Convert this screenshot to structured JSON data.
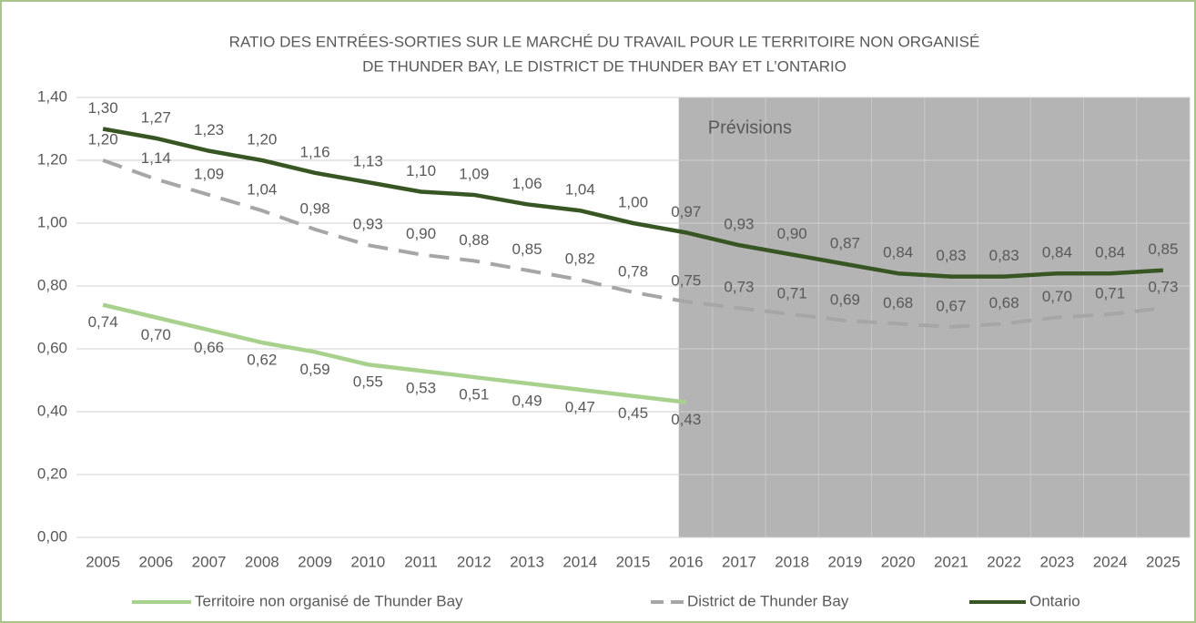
{
  "chart_data": {
    "type": "line",
    "title": [
      "RATIO DES ENTRÉES-SORTIES SUR LE MARCHÉ DU TRAVAIL POUR LE TERRITOIRE NON ORGANISÉ",
      "DE THUNDER BAY, LE DISTRICT DE THUNDER BAY ET L’ONTARIO"
    ],
    "annotation": {
      "text": "Prévisions",
      "x": "2016"
    },
    "categories": [
      "2005",
      "2006",
      "2007",
      "2008",
      "2009",
      "2010",
      "2011",
      "2012",
      "2013",
      "2014",
      "2015",
      "2016",
      "2017",
      "2018",
      "2019",
      "2020",
      "2021",
      "2022",
      "2023",
      "2024",
      "2025"
    ],
    "series": [
      {
        "name": "Territoire non organisé de Thunder Bay",
        "color": "#a9d18e",
        "dash": false,
        "label_side": "below",
        "values": [
          0.74,
          0.7,
          0.66,
          0.62,
          0.59,
          0.55,
          0.53,
          0.51,
          0.49,
          0.47,
          0.45,
          0.43,
          null,
          null,
          null,
          null,
          null,
          null,
          null,
          null,
          null
        ],
        "value_labels": [
          "0,74",
          "0,70",
          "0,66",
          "0,62",
          "0,59",
          "0,55",
          "0,53",
          "0,51",
          "0,49",
          "0,47",
          "0,45",
          "0,43",
          null,
          null,
          null,
          null,
          null,
          null,
          null,
          null,
          null
        ]
      },
      {
        "name": "District de Thunder Bay",
        "color": "#a6a6a6",
        "dash": true,
        "label_side": "above",
        "values": [
          1.2,
          1.14,
          1.09,
          1.04,
          0.98,
          0.93,
          0.9,
          0.88,
          0.85,
          0.82,
          0.78,
          0.75,
          0.73,
          0.71,
          0.69,
          0.68,
          0.67,
          0.68,
          0.7,
          0.71,
          0.73
        ],
        "value_labels": [
          "1,20",
          "1,14",
          "1,09",
          "1,04",
          "0,98",
          "0,93",
          "0,90",
          "0,88",
          "0,85",
          "0,82",
          "0,78",
          "0,75",
          "0,73",
          "0,71",
          "0,69",
          "0,68",
          "0,67",
          "0,68",
          "0,70",
          "0,71",
          "0,73"
        ]
      },
      {
        "name": "Ontario",
        "color": "#375623",
        "dash": false,
        "label_side": "above",
        "values": [
          1.3,
          1.27,
          1.23,
          1.2,
          1.16,
          1.13,
          1.1,
          1.09,
          1.06,
          1.04,
          1.0,
          0.97,
          0.93,
          0.9,
          0.87,
          0.84,
          0.83,
          0.83,
          0.84,
          0.84,
          0.85
        ],
        "value_labels": [
          "1,30",
          "1,27",
          "1,23",
          "1,20",
          "1,16",
          "1,13",
          "1,10",
          "1,09",
          "1,06",
          "1,04",
          "1,00",
          "0,97",
          "0,93",
          "0,90",
          "0,87",
          "0,84",
          "0,83",
          "0,83",
          "0,84",
          "0,84",
          "0,85"
        ]
      }
    ],
    "ylim": [
      0,
      1.4
    ],
    "yticks": [
      {
        "value": 0,
        "label": "0,00"
      },
      {
        "value": 0.2,
        "label": "0,20"
      },
      {
        "value": 0.4,
        "label": "0,40"
      },
      {
        "value": 0.6,
        "label": "0,60"
      },
      {
        "value": 0.8,
        "label": "0,80"
      },
      {
        "value": 1.0,
        "label": "1,00"
      },
      {
        "value": 1.2,
        "label": "1,20"
      },
      {
        "value": 1.4,
        "label": "1,40"
      }
    ],
    "grid": true,
    "legend": "bottom"
  }
}
